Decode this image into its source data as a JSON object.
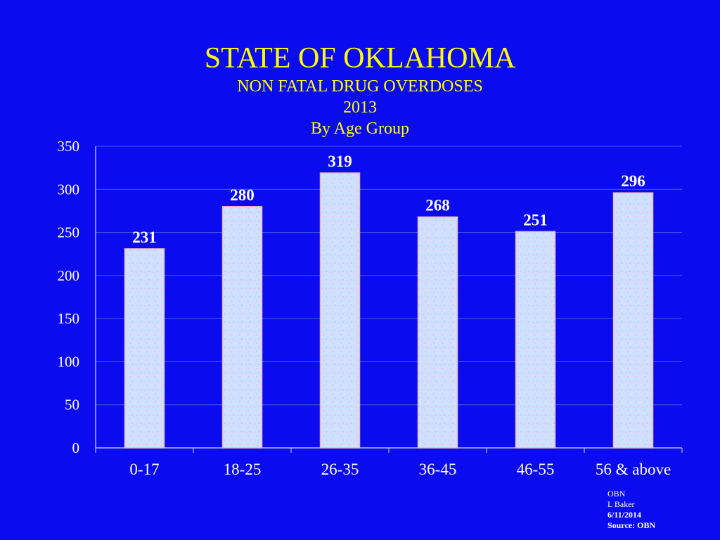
{
  "colors": {
    "background": "#0b0bf0",
    "title": "#ffff00",
    "text": "#ffffff",
    "bar_fill": "#cfe0ff",
    "bar_edge": "#e8b9b9"
  },
  "chart_data": {
    "type": "bar",
    "title": "STATE OF OKLAHOMA",
    "subtitle_lines": [
      "NON FATAL DRUG OVERDOSES",
      "2013",
      "By Age Group"
    ],
    "categories": [
      "0-17",
      "18-25",
      "26-35",
      "36-45",
      "46-55",
      "56 & above"
    ],
    "values": [
      231,
      280,
      319,
      268,
      251,
      296
    ],
    "ylim": [
      0,
      350
    ],
    "yticks": [
      0,
      50,
      100,
      150,
      200,
      250,
      300,
      350
    ],
    "grid": true,
    "legend": "none",
    "xlabel": "",
    "ylabel": ""
  },
  "footnote": {
    "line1": "OBN",
    "line2": "L Baker",
    "date": "6/11/2014",
    "source": "Source:  OBN"
  }
}
